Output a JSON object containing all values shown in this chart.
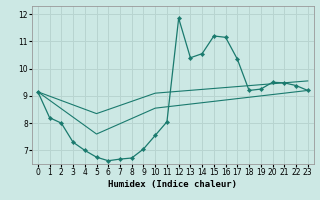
{
  "xlabel": "Humidex (Indice chaleur)",
  "background_color": "#cce8e4",
  "line_color": "#1a7a6e",
  "grid_color": "#b8d4d0",
  "xlim": [
    -0.5,
    23.5
  ],
  "ylim": [
    6.5,
    12.3
  ],
  "yticks": [
    7,
    8,
    9,
    10,
    11,
    12
  ],
  "xticks": [
    0,
    1,
    2,
    3,
    4,
    5,
    6,
    7,
    8,
    9,
    10,
    11,
    12,
    13,
    14,
    15,
    16,
    17,
    18,
    19,
    20,
    21,
    22,
    23
  ],
  "line1_x": [
    0,
    1,
    2,
    3,
    4,
    5,
    6,
    7,
    8,
    9,
    10,
    11,
    12,
    13,
    14,
    15,
    16,
    17,
    18,
    19,
    20,
    21,
    22,
    23
  ],
  "line1_y": [
    9.15,
    8.2,
    8.0,
    7.3,
    7.0,
    6.75,
    6.62,
    6.68,
    6.72,
    7.05,
    7.55,
    8.05,
    11.85,
    10.4,
    10.55,
    11.2,
    11.15,
    10.35,
    9.2,
    9.25,
    9.5,
    9.48,
    9.38,
    9.2
  ],
  "line2_x": [
    0,
    5,
    10,
    23
  ],
  "line2_y": [
    9.15,
    7.6,
    8.55,
    9.2
  ],
  "line3_x": [
    0,
    5,
    10,
    23
  ],
  "line3_y": [
    9.15,
    8.35,
    9.1,
    9.55
  ]
}
